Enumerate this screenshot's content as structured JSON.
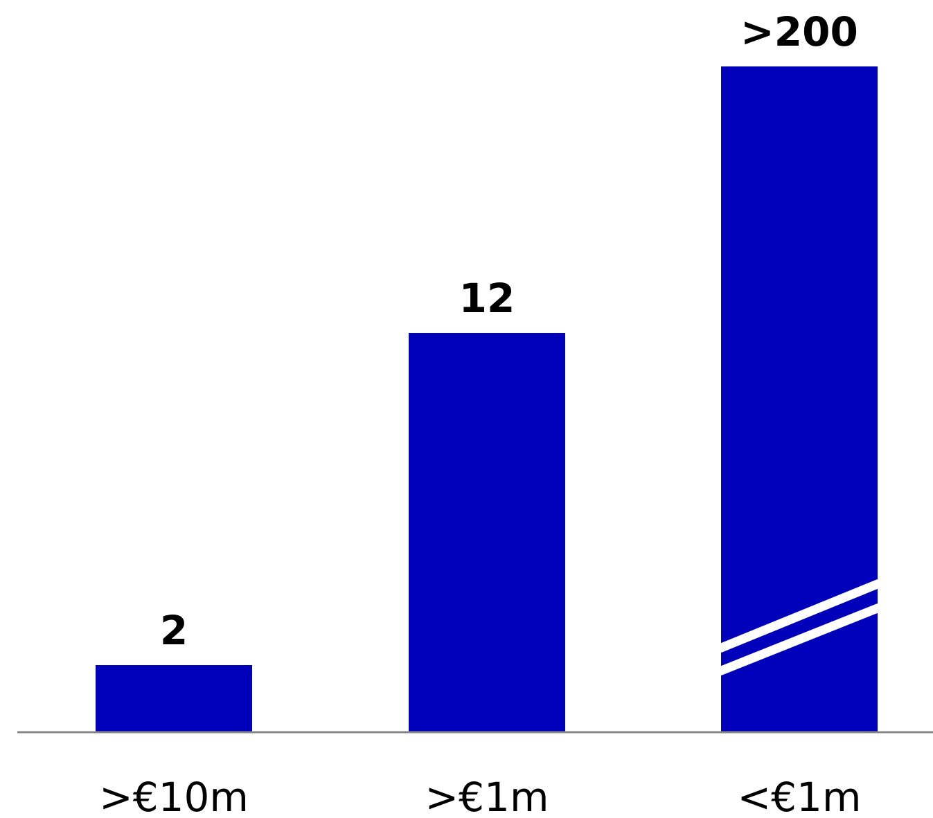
{
  "chart_data": {
    "type": "bar",
    "categories": [
      ">€10m",
      ">€1m",
      "<€1m"
    ],
    "values": [
      2,
      12,
      200
    ],
    "data_labels": [
      "2",
      "12",
      ">200"
    ],
    "axis_break_on": "<€1m",
    "title": "",
    "xlabel": "",
    "ylabel": "",
    "grid": false,
    "legend": "none",
    "colors": {
      "bar": "#0000BB",
      "axis": "#888888",
      "text": "#000000",
      "break": "#FFFFFF"
    }
  }
}
